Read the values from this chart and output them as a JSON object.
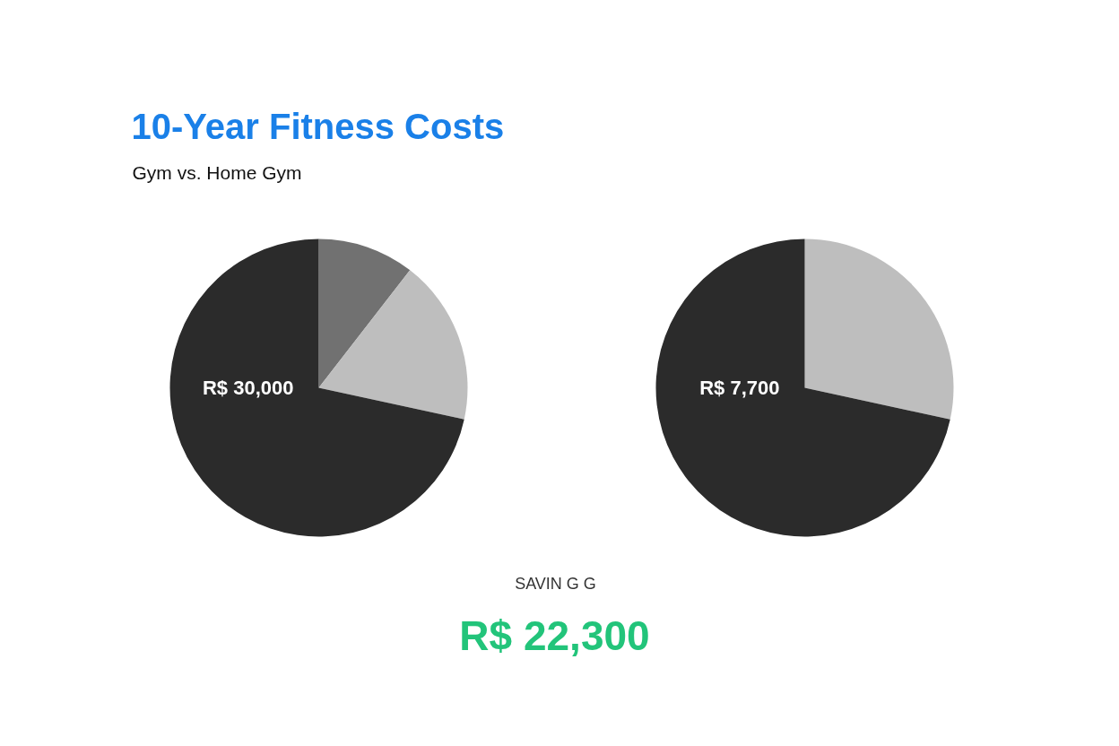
{
  "chart_data": [
    {
      "type": "pie",
      "title": "10-Year Fitness Costs",
      "subtitle": "Gym vs. Home Gym",
      "categories": [
        null,
        null,
        null
      ],
      "values": [
        10.5,
        17.9,
        71.6
      ],
      "colors": [
        "#717171",
        "#bebebe",
        "#2b2b2b"
      ],
      "annotations": [
        "R$ 30,000"
      ]
    },
    {
      "type": "pie",
      "categories": [
        null,
        null
      ],
      "values": [
        28.4,
        71.6
      ],
      "colors": [
        "#bebebe",
        "#2b2b2b"
      ],
      "annotations": [
        "R$ 7,700",
        "SAVIN G G",
        "R$ 22,300"
      ]
    }
  ]
}
